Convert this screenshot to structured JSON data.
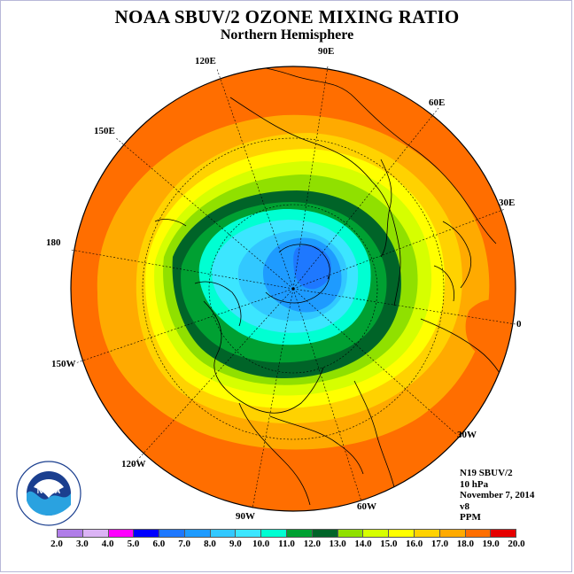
{
  "title": "NOAA SBUV/2 OZONE MIXING RATIO",
  "subtitle": "Northern Hemisphere",
  "longitude_labels": [
    "90E",
    "60E",
    "30E",
    "0",
    "30W",
    "60W",
    "90W",
    "120W",
    "150W",
    "180",
    "150E",
    "120E"
  ],
  "info": {
    "satellite": "N19 SBUV/2",
    "level": "10 hPa",
    "date": "November 7, 2014",
    "version": "v8",
    "units": "PPM"
  },
  "logo": {
    "text": "NOAA",
    "ring_text": "NATIONAL OCEANIC AND ATMOSPHERIC ADMINISTRATION · U.S. DEPARTMENT OF COMMERCE"
  },
  "colorbar": {
    "ticks": [
      "2.0",
      "3.0",
      "4.0",
      "5.0",
      "6.0",
      "7.0",
      "8.0",
      "9.0",
      "10.0",
      "11.0",
      "12.0",
      "13.0",
      "14.0",
      "15.0",
      "16.0",
      "17.0",
      "18.0",
      "19.0",
      "20.0"
    ],
    "colors": [
      "#b07de8",
      "#dbb3f5",
      "#ff00ff",
      "#0000ff",
      "#1e78ff",
      "#1e9bff",
      "#32c8ff",
      "#3ce6ff",
      "#00ffd2",
      "#00a032",
      "#006428",
      "#90e000",
      "#d6ff00",
      "#ffff00",
      "#ffd200",
      "#ffaa00",
      "#ff6e00",
      "#e60000",
      "#8b5a3c"
    ]
  },
  "colors": {
    "frame": "#b8b8d8",
    "coastline": "#000000",
    "grid": "#000000"
  }
}
